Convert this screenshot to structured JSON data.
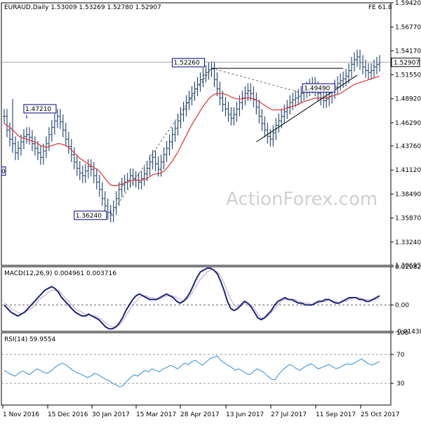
{
  "chart_data": [
    {
      "type": "ohlc",
      "symbol": "EURAUD,Daily",
      "ohlc_header": [
        "1.53009",
        "1.53269",
        "1.52780",
        "1.52907"
      ],
      "last_price": "1.52907",
      "fe_label": "FE 61.8",
      "watermark": "ActionForex.com",
      "ylim": [
        1.3069,
        1.5942
      ],
      "y_ticks": [
        "1.59420",
        "1.56770",
        "1.54170",
        "1.51550",
        "1.48920",
        "1.46290",
        "1.43760",
        "1.41120",
        "1.38490",
        "1.35870",
        "1.33240",
        "1.30695"
      ],
      "x_ticks": [
        "1 Nov 2016",
        "15 Dec 2016",
        "30 Jan 2017",
        "15 Mar 2017",
        "28 Apr 2017",
        "13 Jun 2017",
        "27 Jul 2017",
        "11 Sep 2017",
        "25 Oct 2017"
      ],
      "price_labels": [
        "1.47210",
        "1.36240",
        "1.52260",
        "1.49490"
      ],
      "left_edge_label": "0",
      "close_series": [
        1.47,
        1.455,
        1.445,
        1.44,
        1.43,
        1.435,
        1.442,
        1.448,
        1.45,
        1.447,
        1.44,
        1.435,
        1.43,
        1.425,
        1.432,
        1.44,
        1.45,
        1.458,
        1.465,
        1.47,
        1.464,
        1.455,
        1.445,
        1.437,
        1.428,
        1.42,
        1.413,
        1.408,
        1.405,
        1.41,
        1.415,
        1.412,
        1.405,
        1.398,
        1.39,
        1.38,
        1.372,
        1.365,
        1.362,
        1.37,
        1.38,
        1.39,
        1.395,
        1.398,
        1.4,
        1.405,
        1.402,
        1.4,
        1.398,
        1.402,
        1.407,
        1.413,
        1.42,
        1.425,
        1.418,
        1.412,
        1.42,
        1.428,
        1.435,
        1.442,
        1.45,
        1.457,
        1.465,
        1.472,
        1.478,
        1.485,
        1.49,
        1.495,
        1.5,
        1.505,
        1.51,
        1.515,
        1.518,
        1.521,
        1.522,
        1.51,
        1.5,
        1.49,
        1.483,
        1.478,
        1.472,
        1.468,
        1.472,
        1.478,
        1.485,
        1.49,
        1.495,
        1.498,
        1.495,
        1.488,
        1.48,
        1.47,
        1.462,
        1.455,
        1.448,
        1.445,
        1.452,
        1.46,
        1.465,
        1.47,
        1.475,
        1.48,
        1.485,
        1.488,
        1.49,
        1.492,
        1.495,
        1.498,
        1.5,
        1.503,
        1.505,
        1.5,
        1.495,
        1.49,
        1.487,
        1.489,
        1.492,
        1.497,
        1.502,
        1.506,
        1.509,
        1.511,
        1.514,
        1.52,
        1.527,
        1.532,
        1.535,
        1.529,
        1.524,
        1.52,
        1.518,
        1.52,
        1.524,
        1.527,
        1.529
      ],
      "ma_series": [
        1.462,
        1.46,
        1.458,
        1.455,
        1.452,
        1.449,
        1.447,
        1.446,
        1.445,
        1.444,
        1.443,
        1.442,
        1.44,
        1.438,
        1.437,
        1.436,
        1.437,
        1.438,
        1.439,
        1.44,
        1.44,
        1.439,
        1.438,
        1.436,
        1.433,
        1.43,
        1.427,
        1.424,
        1.422,
        1.42,
        1.418,
        1.416,
        1.414,
        1.412,
        1.41,
        1.406,
        1.402,
        1.398,
        1.395,
        1.394,
        1.394,
        1.395,
        1.396,
        1.397,
        1.398,
        1.399,
        1.4,
        1.4,
        1.4,
        1.4,
        1.401,
        1.402,
        1.404,
        1.406,
        1.407,
        1.407,
        1.408,
        1.41,
        1.413,
        1.417,
        1.421,
        1.426,
        1.431,
        1.437,
        1.443,
        1.449,
        1.455,
        1.461,
        1.466,
        1.471,
        1.476,
        1.481,
        1.485,
        1.489,
        1.492,
        1.494,
        1.495,
        1.495,
        1.495,
        1.494,
        1.493,
        1.491,
        1.49,
        1.489,
        1.489,
        1.489,
        1.49,
        1.49,
        1.49,
        1.489,
        1.488,
        1.486,
        1.484,
        1.482,
        1.48,
        1.478,
        1.477,
        1.477,
        1.477,
        1.477,
        1.478,
        1.479,
        1.48,
        1.481,
        1.482,
        1.483,
        1.485,
        1.486,
        1.487,
        1.488,
        1.489,
        1.49,
        1.49,
        1.49,
        1.49,
        1.49,
        1.491,
        1.492,
        1.493,
        1.494,
        1.495,
        1.497,
        1.499,
        1.501,
        1.503,
        1.505,
        1.506,
        1.507,
        1.508,
        1.509,
        1.51,
        1.511,
        1.512,
        1.513,
        1.514
      ]
    },
    {
      "type": "line",
      "title": "MACD(12,26,9) 0.004961 0.003716",
      "ylim": [
        -0.014386,
        0.020827
      ],
      "y_ticks": [
        "0.020827",
        "0.00",
        "-0.014386"
      ],
      "macd_series": [
        0.0,
        -0.002,
        -0.004,
        -0.005,
        -0.006,
        -0.005,
        -0.004,
        -0.002,
        0.0,
        0.002,
        0.004,
        0.006,
        0.008,
        0.009,
        0.01,
        0.009,
        0.007,
        0.004,
        0.002,
        0.0,
        -0.002,
        -0.004,
        -0.005,
        -0.006,
        -0.006,
        -0.005,
        -0.006,
        -0.007,
        -0.008,
        -0.01,
        -0.012,
        -0.013,
        -0.013,
        -0.012,
        -0.01,
        -0.007,
        -0.003,
        0.0,
        0.003,
        0.005,
        0.006,
        0.005,
        0.004,
        0.003,
        0.003,
        0.003,
        0.004,
        0.005,
        0.006,
        0.005,
        0.004,
        0.002,
        0.001,
        0.002,
        0.004,
        0.007,
        0.011,
        0.015,
        0.018,
        0.019,
        0.02,
        0.02,
        0.019,
        0.017,
        0.013,
        0.008,
        0.002,
        -0.002,
        -0.003,
        -0.002,
        0.0,
        0.002,
        0.001,
        -0.001,
        -0.004,
        -0.007,
        -0.008,
        -0.007,
        -0.005,
        -0.003,
        0.0,
        0.002,
        0.003,
        0.004,
        0.003,
        0.003,
        0.002,
        0.001,
        0.001,
        0.0,
        0.0,
        0.0,
        0.001,
        0.002,
        0.002,
        0.003,
        0.003,
        0.002,
        0.001,
        0.001,
        0.002,
        0.003,
        0.004,
        0.004,
        0.004,
        0.003,
        0.003,
        0.002,
        0.002,
        0.003,
        0.004,
        0.005
      ],
      "signal_series": [
        0.001,
        0.0,
        -0.002,
        -0.003,
        -0.004,
        -0.005,
        -0.004,
        -0.003,
        -0.002,
        0.0,
        0.002,
        0.004,
        0.005,
        0.007,
        0.008,
        0.008,
        0.008,
        0.006,
        0.004,
        0.002,
        0.0,
        -0.002,
        -0.003,
        -0.004,
        -0.005,
        -0.005,
        -0.006,
        -0.006,
        -0.007,
        -0.008,
        -0.01,
        -0.011,
        -0.012,
        -0.012,
        -0.011,
        -0.009,
        -0.006,
        -0.003,
        0.0,
        0.002,
        0.004,
        0.005,
        0.005,
        0.004,
        0.004,
        0.003,
        0.003,
        0.004,
        0.005,
        0.005,
        0.005,
        0.004,
        0.003,
        0.002,
        0.003,
        0.005,
        0.008,
        0.011,
        0.014,
        0.016,
        0.018,
        0.019,
        0.019,
        0.018,
        0.016,
        0.012,
        0.007,
        0.003,
        0.0,
        -0.001,
        -0.001,
        0.001,
        0.001,
        0.0,
        -0.002,
        -0.005,
        -0.007,
        -0.007,
        -0.006,
        -0.004,
        -0.002,
        0.0,
        0.002,
        0.003,
        0.003,
        0.003,
        0.003,
        0.002,
        0.001,
        0.001,
        0.001,
        0.0,
        0.001,
        0.001,
        0.002,
        0.002,
        0.003,
        0.002,
        0.002,
        0.001,
        0.002,
        0.002,
        0.003,
        0.004,
        0.004,
        0.004,
        0.003,
        0.003,
        0.003,
        0.003,
        0.003,
        0.0037
      ]
    },
    {
      "type": "line",
      "title": "RSI(14) 59.9554",
      "ylim": [
        0,
        100
      ],
      "y_ticks": [
        "100",
        "70",
        "30",
        "0"
      ],
      "rsi_series": [
        48,
        45,
        42,
        40,
        44,
        47,
        45,
        42,
        46,
        50,
        48,
        45,
        44,
        47,
        52,
        55,
        58,
        56,
        52,
        48,
        45,
        43,
        41,
        38,
        40,
        44,
        42,
        39,
        36,
        34,
        30,
        28,
        25,
        27,
        33,
        38,
        42,
        40,
        44,
        48,
        46,
        50,
        48,
        46,
        50,
        52,
        55,
        53,
        50,
        54,
        58,
        56,
        60,
        62,
        58,
        55,
        60,
        64,
        66,
        68,
        62,
        58,
        55,
        52,
        48,
        50,
        47,
        44,
        42,
        46,
        50,
        48,
        45,
        40,
        36,
        35,
        42,
        48,
        52,
        56,
        54,
        50,
        48,
        52,
        55,
        57,
        54,
        50,
        52,
        54,
        56,
        53,
        50,
        52,
        55,
        57,
        56,
        58,
        61,
        64,
        60,
        57,
        55,
        58,
        60
      ]
    }
  ]
}
